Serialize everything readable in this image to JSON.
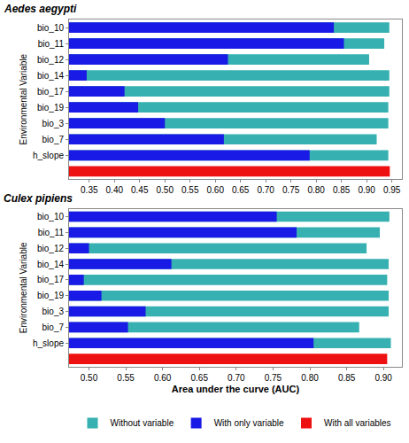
{
  "chart_data": [
    {
      "type": "bar",
      "orientation": "horizontal",
      "title": "Aedes aegypti",
      "y_label": "Environmental Variable",
      "categories": [
        "bio_10",
        "bio_11",
        "bio_12",
        "bio_14",
        "bio_17",
        "bio_19",
        "bio_3",
        "bio_7",
        "h_slope",
        null
      ],
      "series": [
        {
          "name": "Without variable",
          "color": "#36b0b0",
          "values": [
            0.945,
            0.935,
            0.905,
            0.945,
            0.945,
            0.943,
            0.943,
            0.92,
            0.943,
            null
          ]
        },
        {
          "name": "With only variable",
          "color": "#1a1ae6",
          "values": [
            0.835,
            0.855,
            0.625,
            0.345,
            0.42,
            0.447,
            0.5,
            0.617,
            0.787,
            null
          ]
        },
        {
          "name": "With all variables",
          "color": "#ee1111",
          "values": [
            null,
            null,
            null,
            null,
            null,
            null,
            null,
            null,
            null,
            0.946
          ]
        }
      ],
      "xlim": [
        0.31,
        0.97
      ],
      "xticks": [
        0.35,
        {
          "value": 0.4,
          "label": "0.40"
        },
        0.45,
        {
          "value": 0.5,
          "label": "0.50"
        },
        0.55,
        {
          "value": 0.6,
          "label": "0.60"
        },
        0.65,
        {
          "value": 0.7,
          "label": "0.70"
        },
        0.75,
        {
          "value": 0.8,
          "label": "0.80"
        },
        0.85,
        {
          "value": 0.9,
          "label": "0.90"
        },
        0.95
      ],
      "grid": false
    },
    {
      "type": "bar",
      "orientation": "horizontal",
      "title": "Culex pipiens",
      "x_label": "Area under the curve (AUC)",
      "y_label": "Environmental Variable",
      "categories": [
        "bio_10",
        "bio_11",
        "bio_12",
        "bio_14",
        "bio_17",
        "bio_19",
        "bio_3",
        "bio_7",
        "h_slope",
        null
      ],
      "series": [
        {
          "name": "Without variable",
          "color": "#36b0b0",
          "values": [
            0.908,
            0.895,
            0.877,
            0.907,
            0.905,
            0.907,
            0.907,
            0.867,
            0.91,
            null
          ]
        },
        {
          "name": "With only variable",
          "color": "#1a1ae6",
          "values": [
            0.755,
            0.782,
            0.5,
            0.612,
            0.493,
            0.517,
            0.577,
            0.553,
            0.805,
            null
          ]
        },
        {
          "name": "With all variables",
          "color": "#ee1111",
          "values": [
            null,
            null,
            null,
            null,
            null,
            null,
            null,
            null,
            null,
            0.905
          ]
        }
      ],
      "xlim": [
        0.473,
        0.925
      ],
      "xticks": [
        {
          "value": 0.5,
          "label": "0.50"
        },
        0.55,
        {
          "value": 0.6,
          "label": "0.60"
        },
        0.65,
        {
          "value": 0.7,
          "label": "0.70"
        },
        0.75,
        {
          "value": 0.8,
          "label": "0.80"
        },
        0.85,
        {
          "value": 0.9,
          "label": "0.90"
        }
      ],
      "grid": false,
      "legend": "bottom"
    }
  ]
}
